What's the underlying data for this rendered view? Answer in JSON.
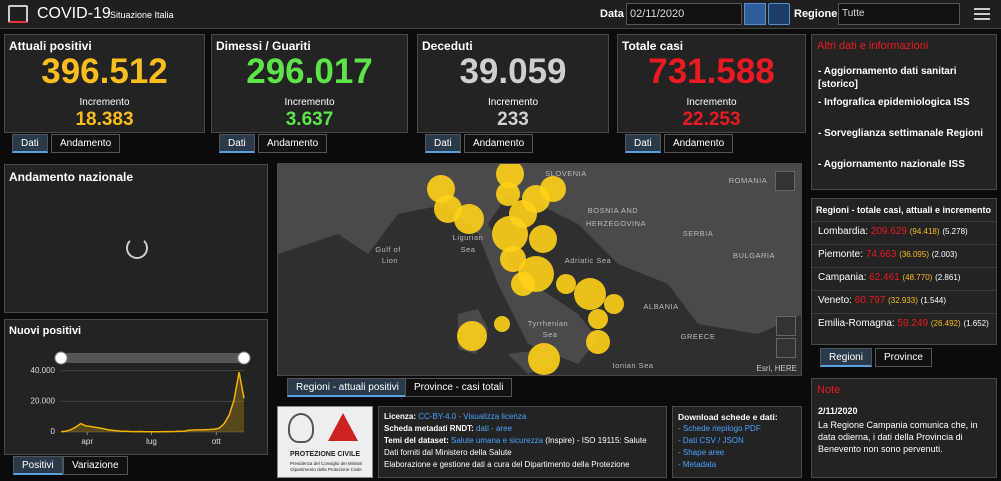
{
  "header": {
    "title": "COVID-19",
    "subtitle": "Situazione Italia",
    "date_label": "Data",
    "date": "02/11/2020",
    "region_label": "Regione",
    "region": "Tutte"
  },
  "cards": [
    {
      "title": "Attuali positivi",
      "value": "396.512",
      "increment_label": "Incremento",
      "increment": "18.383",
      "color": "#fbbd1c",
      "tabs": [
        "Dati",
        "Andamento"
      ]
    },
    {
      "title": "Dimessi / Guariti",
      "value": "296.017",
      "increment_label": "Incremento",
      "increment": "3.637",
      "color": "#5ee34a",
      "tabs": [
        "Dati",
        "Andamento"
      ]
    },
    {
      "title": "Deceduti",
      "value": "39.059",
      "increment_label": "Incremento",
      "increment": "233",
      "color": "#cfcfcf",
      "tabs": [
        "Dati",
        "Andamento"
      ]
    },
    {
      "title": "Totale casi",
      "value": "731.588",
      "increment_label": "Incremento",
      "increment": "22.253",
      "color": "#ea1a22",
      "tabs": [
        "Dati",
        "Andamento"
      ]
    }
  ],
  "info": {
    "title": "Altri dati e informazioni",
    "links": [
      "- Aggiornamento dati sanitari [storico]",
      "- Infografica epidemiologica ISS",
      "- Sorveglianza settimanale Regioni",
      "- Aggiornamento nazionale ISS"
    ]
  },
  "regions": {
    "title": "Regioni - totale casi, attuali e incremento",
    "rows": [
      {
        "name": "Lombardia:",
        "total": "209.629",
        "active": "(94.418)",
        "increment": "(5.278)"
      },
      {
        "name": "Piemonte:",
        "total": "74.663",
        "active": "(36.095)",
        "increment": "(2.003)"
      },
      {
        "name": "Campania:",
        "total": "62.461",
        "active": "(48.770)",
        "increment": "(2.861)"
      },
      {
        "name": "Veneto:",
        "total": "60.797",
        "active": "(32.933)",
        "increment": "(1.544)"
      },
      {
        "name": "Emilia-Romagna:",
        "total": "59.249",
        "active": "(26.492)",
        "increment": "(1.652)"
      }
    ],
    "tabs": [
      "Regioni",
      "Province"
    ]
  },
  "note": {
    "title": "Note",
    "date": "2/11/2020",
    "text": "La Regione Campania comunica che, in data odierna, i dati della Provincia di Benevento non sono pervenuti."
  },
  "trend": {
    "title": "Andamento nazionale"
  },
  "new_cases": {
    "title": "Nuovi positivi",
    "values": [
      200,
      500,
      1500,
      3200,
      5500,
      4000,
      3600,
      3000,
      2500,
      1800,
      1200,
      900,
      600,
      500,
      300,
      250,
      300,
      200,
      200,
      200,
      200,
      250,
      250,
      300,
      450,
      600,
      1200,
      1300,
      1400,
      1500,
      1600,
      1800,
      2500,
      5500,
      11000,
      21000,
      39000,
      22000
    ],
    "ylim": [
      0,
      45000
    ],
    "yticks": [
      0,
      {
        "value": 20000,
        "label": "20.000"
      },
      {
        "value": 40000,
        "label": "40.000"
      }
    ],
    "xticks": [
      {
        "value": 5.3,
        "label": "apr"
      },
      {
        "value": 18.3,
        "label": "lug"
      },
      {
        "value": 31.4,
        "label": "ott"
      }
    ],
    "color": "#f5b400",
    "tabs": [
      "Positivi",
      "Variazione"
    ]
  },
  "map": {
    "labels": [
      "SLOVENIA",
      "ROMANIA",
      "BOSNIA AND",
      "HERZEGOVINA",
      "SERBIA",
      "BULGARIA",
      "Gulf of",
      "Lion",
      "Ligurian",
      "Sea",
      "Adriatic Sea",
      "ALBANIA",
      "GREECE",
      "Tyrrhenian",
      "Sea",
      "Ionian Sea"
    ],
    "attribution": "Esri, HERE",
    "tabs": [
      "Regioni - attuali positivi",
      "Province - casi totali"
    ]
  },
  "footer": {
    "logo_title": "PROTEZIONE CIVILE",
    "logo_sub": "Presidenza del Consiglio dei Ministri Dipartimento della Protezione Civile",
    "license": [
      {
        "label": "Licenza:",
        "value": "CC-BY-4.0 - Visualizza licenza"
      },
      {
        "label": "Scheda metadati RNDT:",
        "value": "dati - aree"
      },
      {
        "label": "Temi del dataset:",
        "value": "Salute umana e sicurezza",
        "rest": "(Inspire) - ISO 19115: Salute"
      },
      {
        "label": "Dati forniti dal Ministero della Salute"
      },
      {
        "label": "Elaborazione e gestione dati a cura del Dipartimento della Protezione"
      }
    ],
    "download_title": "Download schede e dati:",
    "downloads": [
      "- Schede riepilogo PDF",
      "- Dati CSV / JSON",
      "- Shape aree",
      "- Metadata"
    ]
  }
}
